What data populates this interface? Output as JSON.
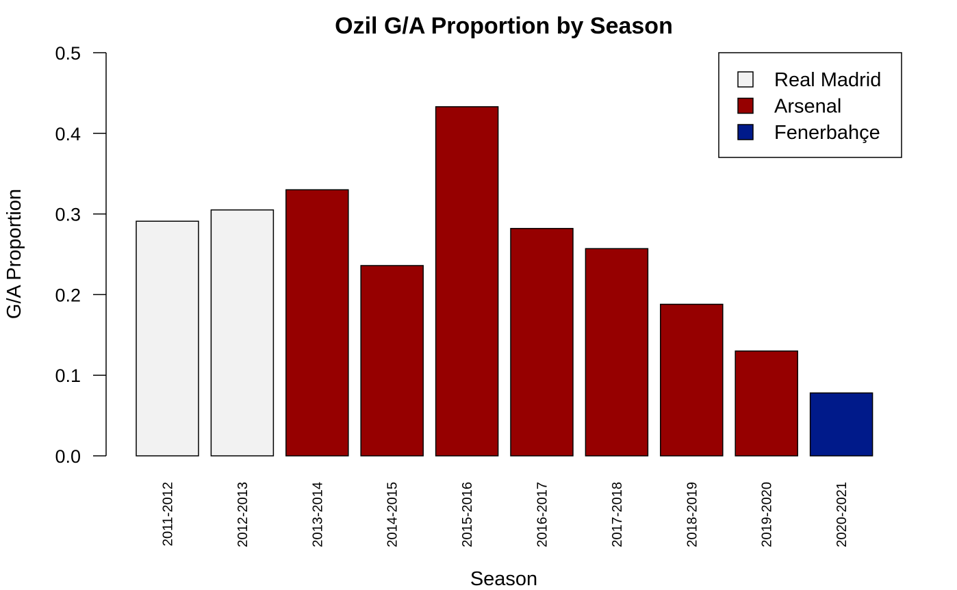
{
  "chart_data": {
    "type": "bar",
    "title": "Ozil G/A Proportion by Season",
    "xlabel": "Season",
    "ylabel": "G/A Proportion",
    "ylim": [
      0,
      0.5
    ],
    "yticks": [
      "0.0",
      "0.1",
      "0.2",
      "0.3",
      "0.4",
      "0.5"
    ],
    "categories": [
      "2011-2012",
      "2012-2013",
      "2013-2014",
      "2014-2015",
      "2015-2016",
      "2016-2017",
      "2017-2018",
      "2018-2019",
      "2019-2020",
      "2020-2021"
    ],
    "values": [
      0.291,
      0.305,
      0.33,
      0.236,
      0.433,
      0.282,
      0.257,
      0.188,
      0.13,
      0.078
    ],
    "teams": [
      "Real Madrid",
      "Real Madrid",
      "Arsenal",
      "Arsenal",
      "Arsenal",
      "Arsenal",
      "Arsenal",
      "Arsenal",
      "Arsenal",
      "Fenerbahçe"
    ],
    "legend": {
      "position": "top-right",
      "entries": [
        {
          "name": "Real Madrid",
          "color": "#f2f2f2"
        },
        {
          "name": "Arsenal",
          "color": "#960000"
        },
        {
          "name": "Fenerbahçe",
          "color": "#001a8a"
        }
      ]
    },
    "grid": false
  }
}
